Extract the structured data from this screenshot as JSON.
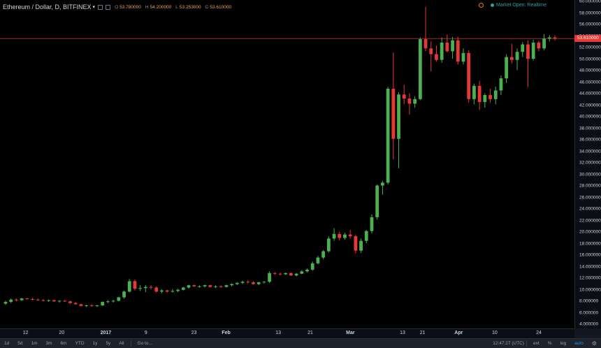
{
  "header": {
    "symbol": "Ethereum / Dollar, D, BITFINEX",
    "ohlc": [
      {
        "label": "O",
        "value": "53.780000"
      },
      {
        "label": "H",
        "value": "54.200000"
      },
      {
        "label": "L",
        "value": "53.253000"
      },
      {
        "label": "C",
        "value": "53.610000"
      }
    ],
    "status": "Market Open: Realtime"
  },
  "chart_data": {
    "type": "candlestick",
    "title": "Ethereum / Dollar, D, BITFINEX",
    "x_tick_labels": [
      "12",
      "20",
      "2017",
      "9",
      "23",
      "Feb",
      "13",
      "21",
      "Mar",
      "13",
      "21",
      "Apr",
      "10",
      "24"
    ],
    "y_tick_labels": [
      "4.000000",
      "6.000000",
      "8.000000",
      "10.000000",
      "12.000000",
      "14.000000",
      "16.000000",
      "18.000000",
      "20.000000",
      "22.000000",
      "24.000000",
      "26.000000",
      "28.000000",
      "30.000000",
      "32.000000",
      "34.000000",
      "36.000000",
      "38.000000",
      "40.000000",
      "42.000000",
      "44.000000",
      "46.000000",
      "48.000000",
      "50.000000",
      "52.000000",
      "54.000000",
      "56.000000",
      "58.000000",
      "60.000000"
    ],
    "ylim": [
      3.3,
      60.3
    ],
    "last_price": 53.61,
    "last_price_label": "53.610000",
    "bull_color": "#4caf50",
    "bear_color": "#e53935",
    "candles": [
      [
        7.6,
        8.1,
        7.4,
        7.9
      ],
      [
        7.9,
        8.5,
        7.7,
        8.3
      ],
      [
        8.3,
        8.5,
        8.0,
        8.2
      ],
      [
        8.2,
        8.6,
        8.1,
        8.5
      ],
      [
        8.5,
        8.6,
        8.3,
        8.4
      ],
      [
        8.4,
        8.6,
        8.2,
        8.3
      ],
      [
        8.3,
        8.5,
        8.1,
        8.2
      ],
      [
        8.2,
        8.4,
        8.0,
        8.1
      ],
      [
        8.1,
        8.3,
        7.9,
        8.2
      ],
      [
        8.2,
        8.3,
        7.9,
        8.0
      ],
      [
        8.0,
        8.2,
        7.8,
        8.1
      ],
      [
        8.1,
        8.3,
        7.9,
        8.0
      ],
      [
        8.0,
        8.1,
        7.6,
        7.7
      ],
      [
        7.7,
        7.9,
        7.4,
        7.5
      ],
      [
        7.5,
        7.6,
        7.1,
        7.2
      ],
      [
        7.2,
        7.4,
        7.0,
        7.3
      ],
      [
        7.3,
        7.5,
        7.1,
        7.2
      ],
      [
        7.2,
        7.4,
        7.0,
        7.3
      ],
      [
        7.3,
        8.0,
        7.2,
        7.9
      ],
      [
        7.9,
        8.2,
        7.7,
        8.0
      ],
      [
        8.0,
        8.3,
        7.8,
        8.1
      ],
      [
        8.1,
        8.8,
        8.0,
        8.7
      ],
      [
        8.7,
        9.9,
        8.5,
        9.7
      ],
      [
        9.7,
        11.9,
        9.5,
        11.5
      ],
      [
        11.5,
        11.8,
        9.9,
        10.2
      ],
      [
        10.2,
        10.8,
        9.8,
        10.3
      ],
      [
        10.3,
        10.8,
        9.6,
        10.5
      ],
      [
        10.5,
        10.8,
        10.1,
        10.4
      ],
      [
        10.4,
        10.6,
        9.5,
        9.7
      ],
      [
        9.7,
        10.1,
        9.4,
        9.9
      ],
      [
        9.9,
        10.0,
        9.5,
        9.7
      ],
      [
        9.7,
        10.1,
        9.5,
        9.8
      ],
      [
        9.8,
        10.2,
        9.6,
        10.0
      ],
      [
        10.0,
        10.5,
        9.9,
        10.4
      ],
      [
        10.4,
        10.9,
        10.2,
        10.8
      ],
      [
        10.8,
        10.9,
        10.5,
        10.6
      ],
      [
        10.6,
        10.8,
        10.4,
        10.6
      ],
      [
        10.6,
        10.9,
        10.4,
        10.8
      ],
      [
        10.8,
        10.9,
        10.4,
        10.5
      ],
      [
        10.5,
        10.8,
        10.3,
        10.6
      ],
      [
        10.6,
        10.8,
        10.4,
        10.5
      ],
      [
        10.5,
        10.9,
        10.4,
        10.8
      ],
      [
        10.8,
        11.1,
        10.6,
        11.0
      ],
      [
        11.0,
        11.3,
        10.8,
        11.2
      ],
      [
        11.2,
        11.6,
        11.0,
        11.4
      ],
      [
        11.4,
        11.7,
        11.1,
        11.3
      ],
      [
        11.3,
        11.5,
        10.9,
        11.0
      ],
      [
        11.0,
        11.4,
        10.8,
        11.3
      ],
      [
        11.3,
        11.5,
        11.1,
        11.4
      ],
      [
        11.4,
        13.2,
        11.2,
        12.9
      ],
      [
        12.9,
        13.1,
        12.6,
        12.8
      ],
      [
        12.8,
        13.0,
        12.5,
        12.7
      ],
      [
        12.7,
        13.0,
        12.6,
        12.9
      ],
      [
        12.9,
        13.0,
        12.4,
        12.5
      ],
      [
        12.5,
        12.9,
        12.3,
        12.8
      ],
      [
        12.8,
        13.4,
        12.7,
        13.2
      ],
      [
        13.2,
        13.7,
        13.0,
        13.5
      ],
      [
        13.5,
        14.9,
        13.3,
        14.6
      ],
      [
        14.6,
        15.9,
        14.4,
        15.6
      ],
      [
        15.6,
        16.9,
        15.3,
        16.7
      ],
      [
        16.7,
        19.3,
        16.5,
        18.9
      ],
      [
        18.9,
        20.7,
        18.5,
        19.7
      ],
      [
        19.7,
        20.1,
        18.6,
        19.0
      ],
      [
        19.0,
        19.9,
        18.7,
        19.6
      ],
      [
        19.6,
        20.4,
        18.9,
        19.3
      ],
      [
        19.3,
        19.6,
        16.3,
        16.8
      ],
      [
        16.8,
        18.9,
        16.4,
        18.5
      ],
      [
        18.5,
        20.4,
        18.1,
        20.2
      ],
      [
        20.2,
        23.1,
        19.8,
        22.6
      ],
      [
        22.6,
        28.3,
        22.2,
        28.1
      ],
      [
        28.1,
        28.9,
        26.5,
        28.6
      ],
      [
        28.6,
        45.2,
        28.3,
        44.9
      ],
      [
        44.9,
        51.2,
        32.6,
        36.2
      ],
      [
        36.2,
        44.3,
        31.1,
        43.9
      ],
      [
        43.9,
        45.6,
        42.2,
        43.2
      ],
      [
        43.2,
        44.1,
        40.4,
        42.3
      ],
      [
        42.3,
        43.6,
        41.6,
        43.1
      ],
      [
        43.1,
        53.8,
        42.9,
        53.5
      ],
      [
        53.5,
        59.1,
        51.4,
        51.9
      ],
      [
        51.9,
        53.1,
        47.9,
        50.9
      ],
      [
        50.9,
        52.4,
        49.6,
        49.9
      ],
      [
        49.9,
        53.8,
        49.4,
        52.9
      ],
      [
        52.9,
        54.3,
        51.2,
        51.4
      ],
      [
        51.4,
        53.9,
        50.1,
        53.3
      ],
      [
        53.3,
        53.9,
        49.1,
        49.6
      ],
      [
        49.6,
        51.9,
        49.1,
        51.1
      ],
      [
        51.1,
        51.6,
        42.5,
        43.1
      ],
      [
        43.1,
        45.8,
        42.2,
        45.4
      ],
      [
        45.4,
        46.3,
        41.2,
        42.6
      ],
      [
        42.6,
        44.1,
        41.6,
        43.8
      ],
      [
        43.8,
        44.9,
        42.5,
        43.1
      ],
      [
        43.1,
        45.3,
        42.2,
        44.6
      ],
      [
        44.6,
        47.2,
        43.8,
        46.7
      ],
      [
        46.7,
        50.9,
        45.9,
        50.4
      ],
      [
        50.4,
        52.7,
        49.3,
        49.9
      ],
      [
        49.9,
        51.9,
        48.1,
        51.3
      ],
      [
        51.3,
        53.0,
        50.4,
        52.6
      ],
      [
        52.6,
        53.3,
        45.2,
        50.1
      ],
      [
        50.1,
        53.4,
        49.8,
        52.9
      ],
      [
        52.9,
        53.2,
        51.4,
        51.9
      ],
      [
        51.9,
        54.4,
        51.6,
        53.6
      ],
      [
        53.6,
        54.2,
        53.1,
        53.8
      ],
      [
        53.8,
        54.2,
        53.253,
        53.61
      ]
    ]
  },
  "bottom_bar": {
    "ranges": [
      "1d",
      "5d",
      "1m",
      "3m",
      "6m",
      "YTD",
      "1y",
      "5y",
      "All"
    ],
    "goto": "Go to...",
    "time": "12:47:27 (UTC)",
    "options": [
      "ext",
      "%",
      "log",
      "auto"
    ]
  }
}
